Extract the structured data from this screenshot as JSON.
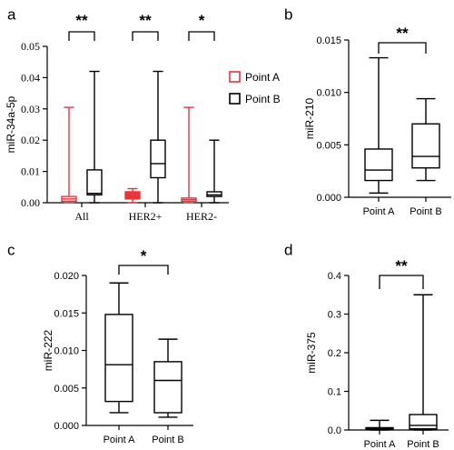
{
  "chart_data": [
    {
      "panel": "a",
      "type": "box",
      "ylabel": "miR-34a-5p",
      "ylim": [
        0,
        0.05
      ],
      "yticks": [
        "0.00",
        "0.01",
        "0.02",
        "0.03",
        "0.04",
        "0.05"
      ],
      "categories": [
        "All",
        "HER2+",
        "HER2-"
      ],
      "legend": {
        "position": "right",
        "entries": [
          "Point A",
          "Point B"
        ]
      },
      "series": [
        {
          "name": "Point A",
          "color": "#e8343a",
          "boxes": [
            {
              "min": 0.0,
              "q1": 0.0005,
              "median": 0.0012,
              "q3": 0.002,
              "max": 0.0305
            },
            {
              "min": 0.0,
              "q1": 0.0012,
              "median": 0.0022,
              "q3": 0.0035,
              "max": 0.0045
            },
            {
              "min": 0.0,
              "q1": 0.0005,
              "median": 0.001,
              "q3": 0.0015,
              "max": 0.0305
            }
          ]
        },
        {
          "name": "Point B",
          "color": "#000000",
          "boxes": [
            {
              "min": 0.0,
              "q1": 0.0025,
              "median": 0.003,
              "q3": 0.0105,
              "max": 0.042
            },
            {
              "min": 0.0,
              "q1": 0.008,
              "median": 0.0125,
              "q3": 0.02,
              "max": 0.042
            },
            {
              "min": 0.0,
              "q1": 0.002,
              "median": 0.0025,
              "q3": 0.0035,
              "max": 0.02
            }
          ]
        }
      ],
      "significance": [
        "**",
        "**",
        "*"
      ]
    },
    {
      "panel": "b",
      "type": "box",
      "ylabel": "miR-210",
      "ylim": [
        0,
        0.015
      ],
      "yticks": [
        "0.000",
        "0.005",
        "0.010",
        "0.015"
      ],
      "categories": [
        "Point A",
        "Point B"
      ],
      "boxes": [
        {
          "min": 0.0004,
          "q1": 0.0016,
          "median": 0.0026,
          "q3": 0.0046,
          "max": 0.0133
        },
        {
          "min": 0.0016,
          "q1": 0.0028,
          "median": 0.0039,
          "q3": 0.007,
          "max": 0.0094
        }
      ],
      "significance": "**"
    },
    {
      "panel": "c",
      "type": "box",
      "ylabel": "miR-222",
      "ylim": [
        0,
        0.02
      ],
      "yticks": [
        "0.000",
        "0.005",
        "0.010",
        "0.015",
        "0.020"
      ],
      "categories": [
        "Point A",
        "Point B"
      ],
      "boxes": [
        {
          "min": 0.0017,
          "q1": 0.0032,
          "median": 0.0081,
          "q3": 0.0148,
          "max": 0.019
        },
        {
          "min": 0.0011,
          "q1": 0.0017,
          "median": 0.006,
          "q3": 0.0085,
          "max": 0.0115
        }
      ],
      "significance": "*"
    },
    {
      "panel": "d",
      "type": "box",
      "ylabel": "miR-375",
      "ylim": [
        0,
        0.4
      ],
      "yticks": [
        "0.0",
        "0.1",
        "0.2",
        "0.3",
        "0.4"
      ],
      "categories": [
        "Point A",
        "Point B"
      ],
      "boxes": [
        {
          "min": 0.0,
          "q1": 0.001,
          "median": 0.003,
          "q3": 0.006,
          "max": 0.025
        },
        {
          "min": 0.0,
          "q1": 0.003,
          "median": 0.012,
          "q3": 0.04,
          "max": 0.35
        }
      ],
      "significance": "**"
    }
  ]
}
